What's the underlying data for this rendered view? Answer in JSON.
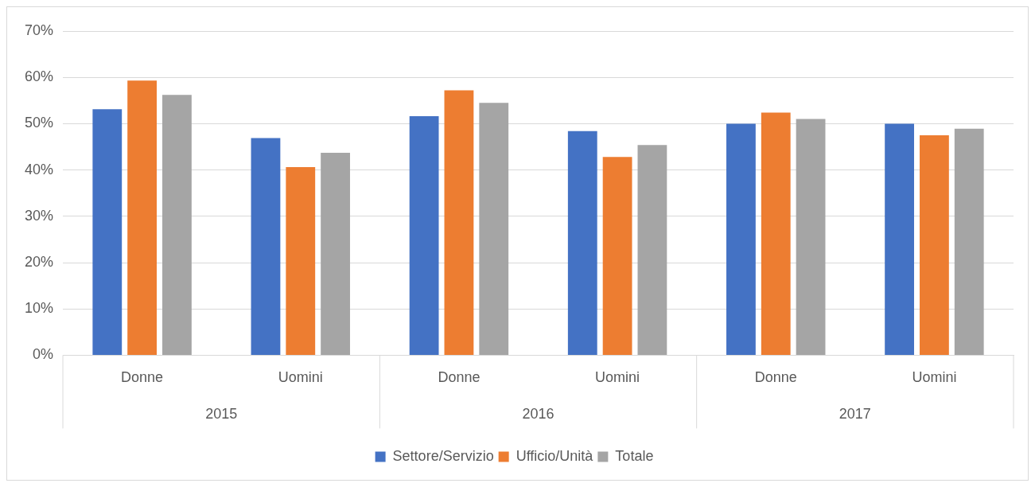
{
  "chart_data": {
    "type": "bar",
    "categories": [
      "Donne",
      "Uomini",
      "Donne",
      "Uomini",
      "Donne",
      "Uomini"
    ],
    "series": [
      {
        "name": "Settore/Servizio",
        "color": "#4472c4",
        "values": [
          53.1,
          46.9,
          51.6,
          48.4,
          50,
          50
        ]
      },
      {
        "name": "Ufficio/Unità",
        "color": "#ed7d31",
        "values": [
          59.3,
          40.6,
          57.2,
          42.8,
          52.4,
          47.5
        ]
      },
      {
        "name": "Totale",
        "color": "#a5a5a5",
        "values": [
          56.2,
          43.7,
          54.5,
          45.4,
          51.0,
          48.9
        ]
      }
    ],
    "ylim": [
      0,
      70
    ],
    "yticks": [
      {
        "value": 0,
        "label": "0%"
      },
      {
        "value": 10,
        "label": "10%"
      },
      {
        "value": 20,
        "label": "20%"
      },
      {
        "value": 30,
        "label": "30%"
      },
      {
        "value": 40,
        "label": "40%"
      },
      {
        "value": 50,
        "label": "50%"
      },
      {
        "value": 60,
        "label": "60%"
      },
      {
        "value": 70,
        "label": "70%"
      }
    ],
    "grid": "y",
    "legend": "bottom",
    "annotations": [
      "2015",
      "2016",
      "2017"
    ]
  }
}
